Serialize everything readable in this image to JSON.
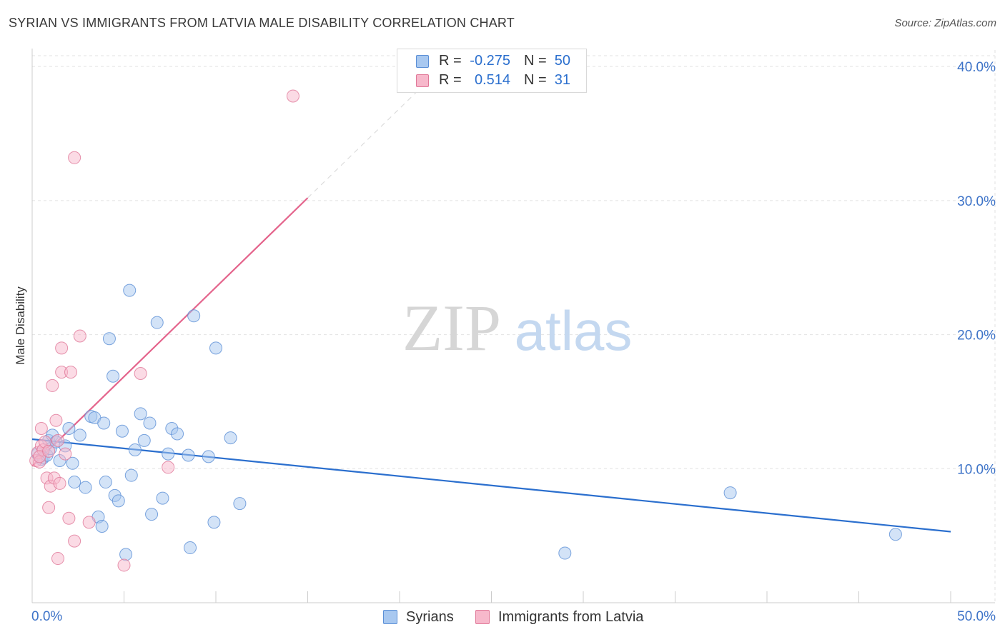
{
  "header": {
    "title": "SYRIAN VS IMMIGRANTS FROM LATVIA MALE DISABILITY CORRELATION CHART",
    "source": "Source: ZipAtlas.com"
  },
  "watermark": {
    "part1": "ZIP",
    "part2": "atlas"
  },
  "stats_legend": {
    "rows": [
      {
        "r_label": "R =",
        "r_value": "-0.275",
        "n_label": "N =",
        "n_value": "50",
        "color": "#a8c8f0",
        "border": "#5b8fd6"
      },
      {
        "r_label": "R =",
        "r_value": "0.514",
        "n_label": "N =",
        "n_value": "31",
        "color": "#f7b8cb",
        "border": "#e07898"
      }
    ]
  },
  "chart_data": {
    "type": "scatter",
    "title": "SYRIAN VS IMMIGRANTS FROM LATVIA MALE DISABILITY CORRELATION CHART",
    "xlabel": "",
    "ylabel": "Male Disability",
    "xlim": [
      0,
      50
    ],
    "ylim": [
      0,
      41.5
    ],
    "x_tick_labels": [
      "0.0%",
      "50.0%"
    ],
    "y_ticks": [
      10,
      20,
      30,
      40
    ],
    "y_tick_labels": [
      "10.0%",
      "20.0%",
      "30.0%",
      "40.0%"
    ],
    "grid": true,
    "legend_position": "bottom",
    "series": [
      {
        "name": "Syrians",
        "color": "#a8c8f0",
        "edge": "#5b8fd6",
        "line_color": "#2b6fce",
        "trend": {
          "x0": 0,
          "y0": 12.2,
          "x1": 50,
          "y1": 5.3
        },
        "points": [
          [
            0.3,
            11.1
          ],
          [
            0.5,
            10.7
          ],
          [
            0.6,
            10.8
          ],
          [
            0.8,
            11.0
          ],
          [
            0.9,
            12.1
          ],
          [
            1.0,
            11.5
          ],
          [
            1.1,
            12.5
          ],
          [
            1.3,
            12.0
          ],
          [
            1.5,
            10.6
          ],
          [
            1.8,
            11.7
          ],
          [
            2.0,
            13.0
          ],
          [
            2.2,
            10.4
          ],
          [
            2.3,
            9.0
          ],
          [
            2.6,
            12.5
          ],
          [
            2.9,
            8.6
          ],
          [
            3.2,
            13.9
          ],
          [
            3.4,
            13.8
          ],
          [
            3.6,
            6.4
          ],
          [
            3.8,
            5.7
          ],
          [
            3.9,
            13.4
          ],
          [
            4.0,
            9.0
          ],
          [
            4.2,
            19.7
          ],
          [
            4.4,
            16.9
          ],
          [
            4.5,
            8.0
          ],
          [
            4.7,
            7.6
          ],
          [
            4.9,
            12.8
          ],
          [
            5.1,
            3.6
          ],
          [
            5.3,
            23.3
          ],
          [
            5.4,
            9.5
          ],
          [
            5.6,
            11.4
          ],
          [
            5.9,
            14.1
          ],
          [
            6.1,
            12.1
          ],
          [
            6.4,
            13.4
          ],
          [
            6.5,
            6.6
          ],
          [
            6.8,
            20.9
          ],
          [
            7.1,
            7.8
          ],
          [
            7.4,
            11.1
          ],
          [
            7.6,
            13.0
          ],
          [
            7.9,
            12.6
          ],
          [
            8.5,
            11.0
          ],
          [
            8.6,
            4.1
          ],
          [
            8.8,
            21.4
          ],
          [
            9.6,
            10.9
          ],
          [
            9.9,
            6.0
          ],
          [
            10.0,
            19.0
          ],
          [
            10.8,
            12.3
          ],
          [
            11.3,
            7.4
          ],
          [
            29.0,
            3.7
          ],
          [
            38.0,
            8.2
          ],
          [
            47.0,
            5.1
          ]
        ]
      },
      {
        "name": "Immigrants from Latvia",
        "color": "#f7b8cb",
        "edge": "#e07898",
        "line_color": "#e4648c",
        "trend": {
          "x0": 0,
          "y0": 10.2,
          "x1": 15,
          "y1": 30.2
        },
        "trend_extension": {
          "x0": 15,
          "y0": 30.2,
          "x1": 21.0,
          "y1": 38.2
        },
        "points": [
          [
            0.2,
            10.6
          ],
          [
            0.3,
            11.2
          ],
          [
            0.4,
            10.5
          ],
          [
            0.5,
            11.7
          ],
          [
            0.5,
            13.0
          ],
          [
            0.6,
            11.4
          ],
          [
            0.7,
            12.0
          ],
          [
            0.8,
            9.3
          ],
          [
            0.9,
            7.1
          ],
          [
            1.0,
            8.7
          ],
          [
            1.1,
            16.2
          ],
          [
            1.2,
            9.3
          ],
          [
            1.3,
            13.6
          ],
          [
            1.4,
            12.1
          ],
          [
            1.4,
            3.3
          ],
          [
            1.5,
            8.9
          ],
          [
            1.6,
            19.0
          ],
          [
            1.6,
            17.2
          ],
          [
            1.8,
            11.1
          ],
          [
            2.0,
            6.3
          ],
          [
            2.1,
            17.2
          ],
          [
            2.3,
            4.6
          ],
          [
            2.3,
            33.2
          ],
          [
            2.6,
            19.9
          ],
          [
            3.1,
            6.0
          ],
          [
            5.0,
            2.8
          ],
          [
            5.9,
            17.1
          ],
          [
            7.4,
            10.1
          ],
          [
            14.2,
            37.8
          ],
          [
            0.4,
            10.9
          ],
          [
            0.9,
            11.3
          ]
        ]
      }
    ]
  }
}
